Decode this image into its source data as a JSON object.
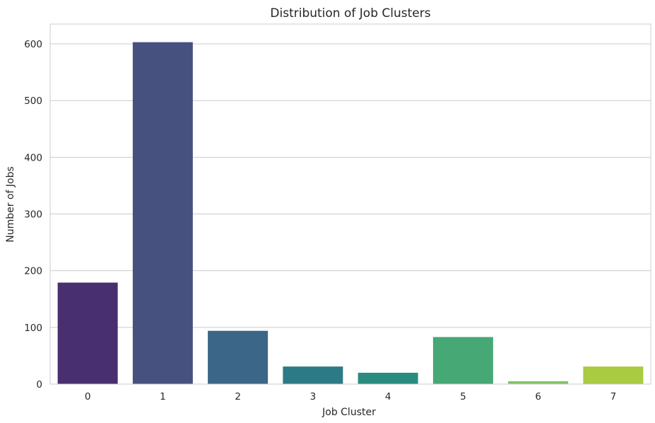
{
  "chart_data": {
    "type": "bar",
    "title": "Distribution of Job Clusters",
    "xlabel": "Job Cluster",
    "ylabel": "Number of Jobs",
    "categories": [
      "0",
      "1",
      "2",
      "3",
      "4",
      "5",
      "6",
      "7"
    ],
    "values": [
      179,
      603,
      94,
      31,
      20,
      83,
      5,
      31
    ],
    "colors": [
      "#482f6f",
      "#465180",
      "#3b6687",
      "#2d7a87",
      "#2a8c80",
      "#46a874",
      "#80c464",
      "#a8cb41"
    ],
    "ylim": [
      0,
      635
    ],
    "yticks": [
      0,
      100,
      200,
      300,
      400,
      500,
      600
    ],
    "grid": "horizontal",
    "legend": "none"
  }
}
